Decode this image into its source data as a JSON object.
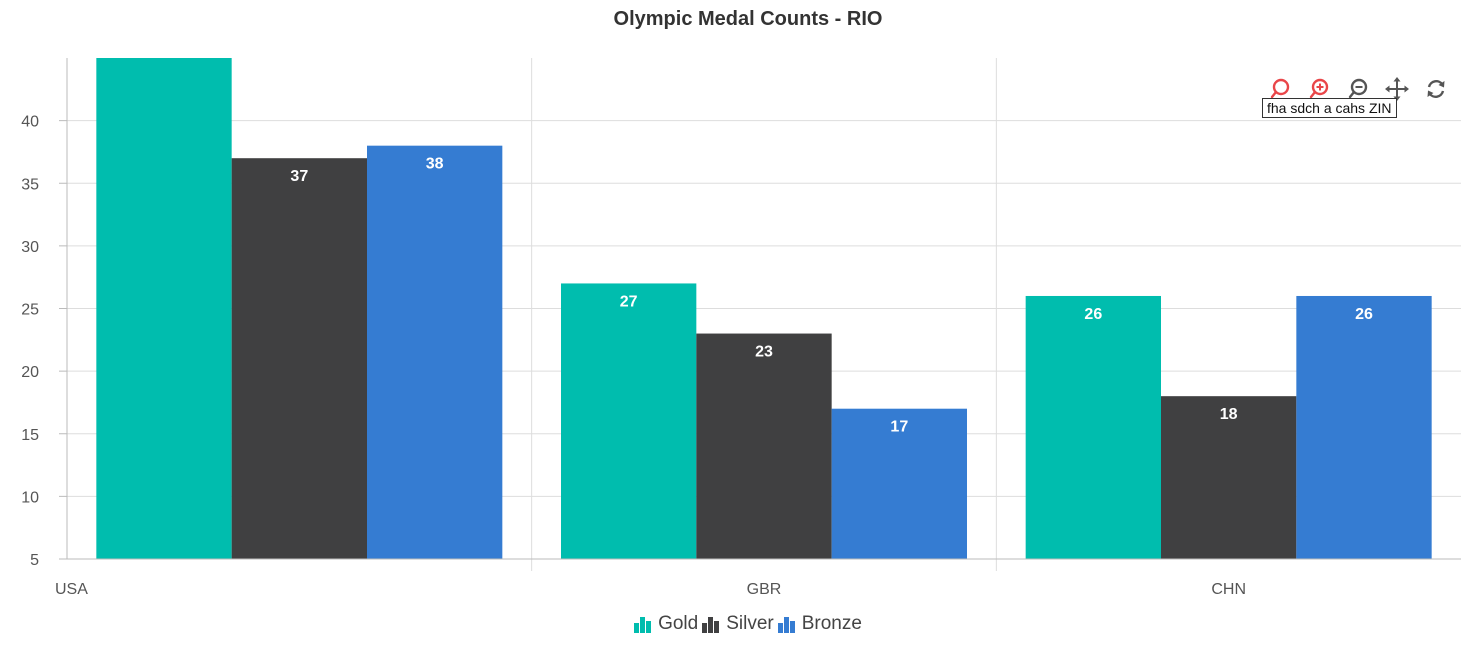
{
  "chart_data": {
    "type": "bar",
    "title": "Olympic Medal Counts - RIO",
    "categories": [
      "USA",
      "GBR",
      "CHN"
    ],
    "series": [
      {
        "name": "Gold",
        "color": "#00bdae",
        "values": [
          46,
          27,
          26
        ]
      },
      {
        "name": "Silver",
        "color": "#404041",
        "values": [
          37,
          23,
          18
        ]
      },
      {
        "name": "Bronze",
        "color": "#357cd2",
        "values": [
          38,
          17,
          26
        ]
      }
    ],
    "ylim": [
      5,
      45
    ],
    "yticks": [
      5,
      10,
      15,
      20,
      25,
      30,
      35,
      40
    ],
    "grid": true,
    "data_labels": true,
    "legend_position": "bottom"
  },
  "toolbar": {
    "tooltip": "fha sdch a cahs ZIN",
    "icons": [
      "zoom-icon",
      "zoom-in-icon",
      "zoom-out-icon",
      "pan-icon",
      "reset-icon"
    ]
  }
}
